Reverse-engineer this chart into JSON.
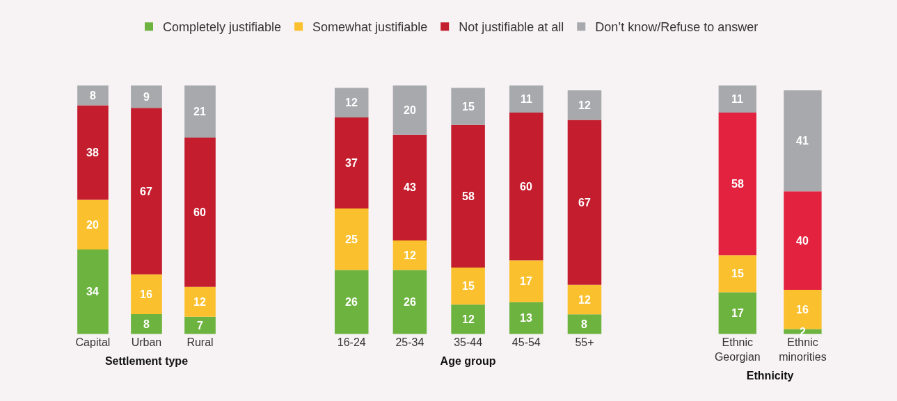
{
  "chart_data": [
    {
      "type": "bar",
      "stacked": true,
      "xlabel": "Settlement type",
      "legend": "top",
      "data_labels": true,
      "categories": [
        "Capital",
        "Urban",
        "Rural"
      ],
      "series": [
        {
          "name": "Completely justifiable",
          "color": "#6db33f",
          "values": [
            34,
            8,
            7
          ]
        },
        {
          "name": "Somewhat justifiable",
          "color": "#fbc02d",
          "values": [
            20,
            16,
            12
          ]
        },
        {
          "name": "Not justifiable at all",
          "color": "#c41e2e",
          "values": [
            38,
            67,
            60
          ]
        },
        {
          "name": "Don’t know/Refuse to answer",
          "color": "#a7a9ac",
          "values": [
            8,
            9,
            21
          ]
        }
      ]
    },
    {
      "type": "bar",
      "stacked": true,
      "xlabel": "Age group",
      "data_labels": true,
      "categories": [
        "16-24",
        "25-34",
        "35-44",
        "45-54",
        "55+"
      ],
      "series": [
        {
          "color": "#6db33f",
          "values": [
            26,
            26,
            12,
            13,
            8
          ]
        },
        {
          "color": "#fbc02d",
          "values": [
            25,
            12,
            15,
            17,
            12
          ]
        },
        {
          "color": "#c41e2e",
          "values": [
            37,
            43,
            58,
            60,
            67
          ]
        },
        {
          "color": "#a7a9ac",
          "values": [
            12,
            20,
            15,
            11,
            12
          ]
        }
      ]
    },
    {
      "type": "bar",
      "stacked": true,
      "xlabel": "Ethnicity",
      "data_labels": true,
      "categories": [
        "Ethnic Georgian",
        "Ethnic minorities"
      ],
      "series": [
        {
          "color": "#6db33f",
          "values": [
            17,
            2
          ]
        },
        {
          "color": "#fbc02d",
          "values": [
            15,
            16
          ]
        },
        {
          "color": "#e3223f",
          "values": [
            58,
            40
          ]
        },
        {
          "color": "#a7a9ac",
          "values": [
            11,
            41
          ]
        }
      ]
    }
  ]
}
